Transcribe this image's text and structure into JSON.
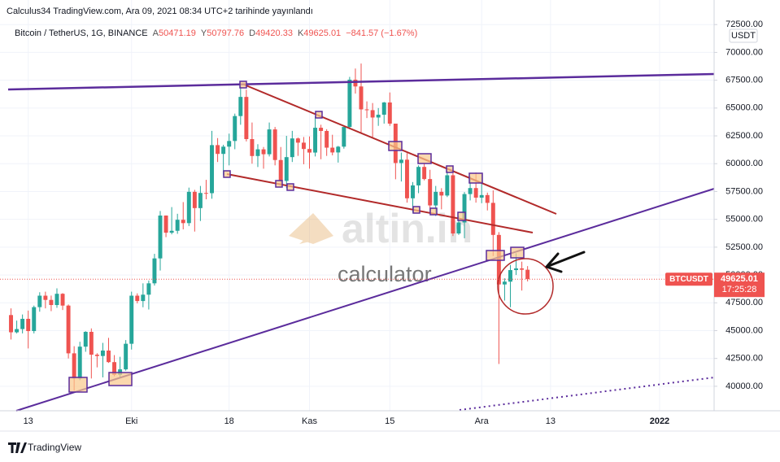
{
  "header": "Calculus34 TradingView.com, Ara 09, 2021 08:34 UTC+2 tarihinde yayınlandı",
  "footer": "TradingView",
  "watermark": {
    "logo": "altin.in",
    "text": "calculator"
  },
  "chart_data": {
    "type": "candlestick",
    "title": "Bitcoin / TetherUS, 1G, BINANCE",
    "ohlc_labels": [
      "A",
      "Y",
      "D",
      "K"
    ],
    "change": "−841.57 (−1.67%)",
    "symbol": "BTCUSDT",
    "countdown": "17:25:28",
    "currency": "USDT",
    "up_color": "#26a69a",
    "down_color": "#ef5350",
    "grid": true,
    "ylim": [
      37800,
      73100
    ],
    "yticks": [
      {
        "value": 40000,
        "label": "40000.00"
      },
      {
        "value": 42500,
        "label": "42500.00"
      },
      {
        "value": 45000,
        "label": "45000.00"
      },
      {
        "value": 47500,
        "label": "47500.00"
      },
      {
        "value": 50000,
        "label": "50000.00"
      },
      {
        "value": 52500,
        "label": "52500.00"
      },
      {
        "value": 55000,
        "label": "55000.00"
      },
      {
        "value": 57500,
        "label": "57500.00"
      },
      {
        "value": 60000,
        "label": "60000.00"
      },
      {
        "value": 62500,
        "label": "62500.00"
      },
      {
        "value": 65000,
        "label": "65000.00"
      },
      {
        "value": 67500,
        "label": "67500.00"
      },
      {
        "value": 70000,
        "label": "70000.00"
      },
      {
        "value": 72500,
        "label": "72500.00"
      }
    ],
    "categories": [
      null,
      null,
      null,
      "13",
      null,
      null,
      null,
      null,
      null,
      null,
      null,
      null,
      null,
      null,
      null,
      null,
      null,
      null,
      null,
      null,
      null,
      "Eki",
      null,
      null,
      null,
      null,
      null,
      null,
      null,
      null,
      null,
      null,
      null,
      null,
      null,
      null,
      null,
      null,
      "18",
      null,
      null,
      null,
      null,
      null,
      null,
      null,
      null,
      null,
      null,
      null,
      null,
      null,
      "Kas",
      null,
      null,
      null,
      null,
      null,
      null,
      null,
      null,
      null,
      null,
      null,
      null,
      null,
      "15",
      null,
      null,
      null,
      null,
      null,
      null,
      null,
      null,
      null,
      null,
      null,
      null,
      null,
      null,
      null,
      "Ara",
      null,
      null,
      null,
      null,
      null,
      null,
      null,
      null,
      null,
      null,
      null,
      "13",
      null,
      null,
      null,
      null,
      null,
      null,
      null,
      null,
      null,
      null,
      null,
      null,
      null,
      null,
      null,
      null,
      null,
      null,
      "2022",
      null,
      null,
      null,
      null,
      null,
      null,
      null,
      null,
      null
    ],
    "open": [
      46400,
      44850,
      45140,
      46060,
      44960,
      47110,
      48140,
      47760,
      47300,
      48310,
      47250,
      42960,
      40700,
      43560,
      44890,
      42840,
      42720,
      43210,
      42170,
      41030,
      41520,
      43820,
      48140,
      47660,
      48230,
      49250,
      51490,
      55340,
      53800,
      53970,
      54960,
      54660,
      57470,
      56010,
      57370,
      57350,
      61670,
      60880,
      61530,
      62040,
      64280,
      66000,
      62210,
      60690,
      61290,
      60850,
      63080,
      60330,
      58450,
      60590,
      62270,
      61890,
      61320,
      61000,
      63230,
      62940,
      61440,
      61010,
      61530,
      63300,
      67550,
      66940,
      64880,
      64810,
      64150,
      64400,
      65500,
      63600,
      60060,
      60360,
      56890,
      58050,
      59710,
      58620,
      56250,
      57470,
      57140,
      58960,
      53730,
      54720,
      57270,
      57810,
      56950,
      57180,
      56480,
      53600,
      49150,
      49400,
      50440,
      50590,
      50471.19,
      null,
      null,
      null,
      null,
      null,
      null,
      null,
      null,
      null,
      null,
      null,
      null,
      null,
      null,
      null,
      null,
      null,
      null,
      null,
      null,
      null,
      null,
      null,
      null,
      null,
      null,
      null,
      null,
      null,
      null,
      null,
      null
    ],
    "high": [
      47000,
      45900,
      46450,
      46800,
      47250,
      48450,
      48500,
      48150,
      48800,
      48370,
      47350,
      43600,
      44000,
      44950,
      45200,
      42970,
      43900,
      44350,
      42800,
      42650,
      44150,
      48500,
      48350,
      49250,
      49500,
      51900,
      55750,
      55350,
      56100,
      55500,
      56550,
      57850,
      57650,
      58000,
      58550,
      62950,
      62300,
      61700,
      62700,
      64500,
      67000,
      66650,
      63700,
      61750,
      61500,
      63700,
      63300,
      61500,
      62500,
      62950,
      62350,
      62400,
      62450,
      64250,
      63500,
      63100,
      62600,
      61600,
      63300,
      67800,
      68550,
      69000,
      65600,
      65450,
      65000,
      65550,
      66400,
      63600,
      61000,
      60950,
      58350,
      59850,
      60050,
      59450,
      58000,
      57800,
      59400,
      59150,
      55300,
      57450,
      58850,
      59200,
      59050,
      57400,
      57600,
      53850,
      49700,
      50900,
      51950,
      51200,
      50797.76,
      null,
      null,
      null,
      null,
      null,
      null,
      null,
      null,
      null,
      null,
      null,
      null,
      null,
      null,
      null,
      null,
      null,
      null,
      null,
      null,
      null,
      null,
      null,
      null,
      null,
      null,
      null,
      null,
      null,
      null,
      null,
      null
    ],
    "low": [
      44200,
      44750,
      44750,
      43400,
      44750,
      46700,
      47000,
      46750,
      47050,
      46850,
      42500,
      39600,
      40550,
      43100,
      40700,
      41700,
      40800,
      42100,
      40900,
      40750,
      41400,
      43300,
      47450,
      47100,
      46900,
      49050,
      50400,
      53400,
      53650,
      53700,
      54100,
      54400,
      53900,
      54850,
      56800,
      56850,
      60150,
      58950,
      59850,
      61300,
      63500,
      62000,
      60000,
      59700,
      59550,
      60650,
      59850,
      58000,
      57800,
      60150,
      60700,
      59950,
      59550,
      60650,
      60400,
      60700,
      60750,
      60100,
      61350,
      63100,
      66300,
      62800,
      64100,
      62300,
      63400,
      63600,
      63400,
      58600,
      58400,
      56500,
      55600,
      57350,
      58500,
      55600,
      55300,
      55900,
      57000,
      53500,
      53600,
      53300,
      56700,
      56500,
      56450,
      55800,
      51700,
      42000,
      47700,
      47100,
      50000,
      48600,
      49420.33,
      null,
      null,
      null,
      null,
      null,
      null,
      null,
      null,
      null,
      null,
      null,
      null,
      null,
      null,
      null,
      null,
      null,
      null,
      null,
      null,
      null,
      null,
      null,
      null,
      null,
      null,
      null,
      null,
      null,
      null,
      null,
      null
    ],
    "close": [
      44850,
      45140,
      46060,
      44960,
      47110,
      48140,
      47760,
      47300,
      48310,
      47250,
      42960,
      40700,
      43560,
      44890,
      42840,
      42720,
      43210,
      42170,
      41030,
      41520,
      43820,
      48140,
      47660,
      48230,
      49250,
      51490,
      55340,
      53800,
      53970,
      54960,
      54660,
      57470,
      56010,
      57370,
      57350,
      61670,
      60880,
      61530,
      62040,
      64280,
      66000,
      62210,
      60690,
      61290,
      60850,
      63080,
      60330,
      58450,
      60590,
      62270,
      61890,
      61320,
      61000,
      63230,
      62940,
      61440,
      61010,
      61530,
      63300,
      67550,
      66940,
      64880,
      64810,
      64150,
      64400,
      65500,
      63600,
      60060,
      60360,
      56890,
      58050,
      59710,
      58620,
      56250,
      57470,
      57140,
      58960,
      53730,
      54720,
      57270,
      57810,
      56950,
      57180,
      56480,
      53600,
      49150,
      49400,
      50440,
      50590,
      50470,
      49625.01,
      null,
      null,
      null,
      null,
      null,
      null,
      null,
      null,
      null,
      null,
      null,
      null,
      null,
      null,
      null,
      null,
      null,
      null,
      null,
      null,
      null,
      null,
      null,
      null,
      null,
      null,
      null,
      null,
      null,
      null,
      null,
      null
    ]
  }
}
